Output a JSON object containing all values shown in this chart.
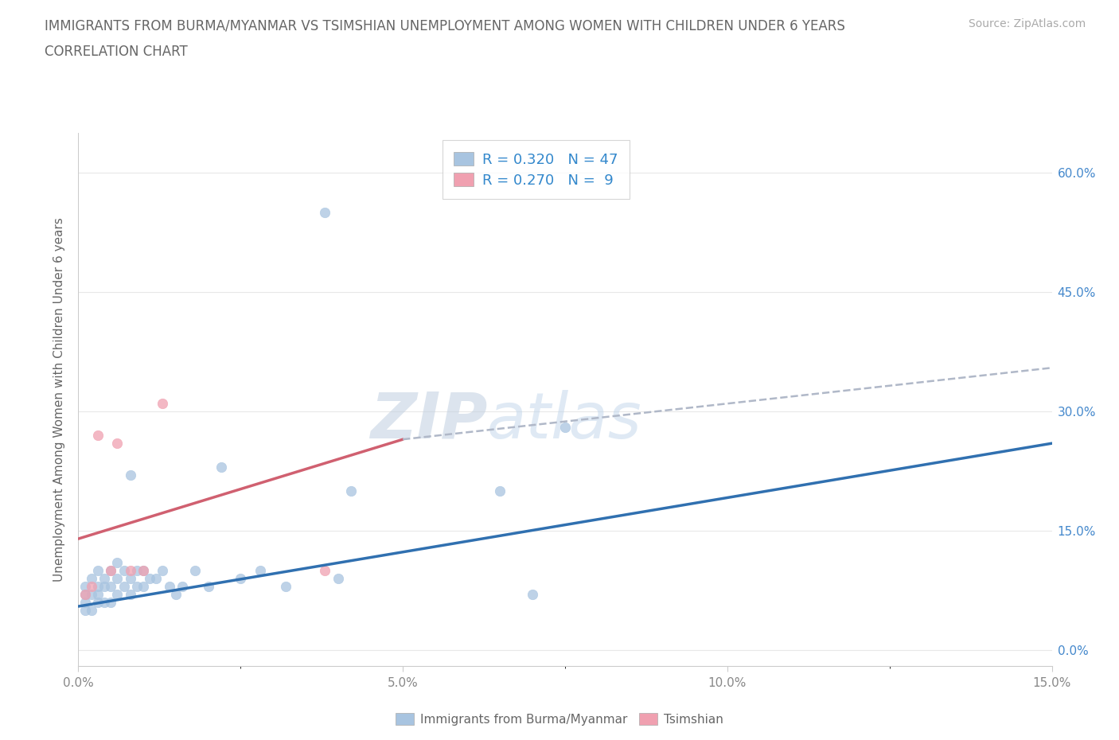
{
  "title_line1": "IMMIGRANTS FROM BURMA/MYANMAR VS TSIMSHIAN UNEMPLOYMENT AMONG WOMEN WITH CHILDREN UNDER 6 YEARS",
  "title_line2": "CORRELATION CHART",
  "source": "Source: ZipAtlas.com",
  "ylabel": "Unemployment Among Women with Children Under 6 years",
  "xlim": [
    0.0,
    0.15
  ],
  "ylim": [
    -0.02,
    0.65
  ],
  "yticks": [
    0.0,
    0.15,
    0.3,
    0.45,
    0.6
  ],
  "yticklabels": [
    "0.0%",
    "15.0%",
    "30.0%",
    "45.0%",
    "60.0%"
  ],
  "xticks": [
    0.0,
    0.05,
    0.1,
    0.15
  ],
  "xticklabels": [
    "0.0%",
    "5.0%",
    "10.0%",
    "15.0%"
  ],
  "blue_R": 0.32,
  "blue_N": 47,
  "pink_R": 0.27,
  "pink_N": 9,
  "blue_color": "#a8c4e0",
  "pink_color": "#f0a0b0",
  "blue_line_color": "#3070b0",
  "pink_line_color": "#d06070",
  "gray_dash_color": "#b0b8c8",
  "legend_label_blue": "Immigrants from Burma/Myanmar",
  "legend_label_pink": "Tsimshian",
  "blue_scatter_x": [
    0.001,
    0.001,
    0.001,
    0.001,
    0.002,
    0.002,
    0.002,
    0.003,
    0.003,
    0.003,
    0.003,
    0.004,
    0.004,
    0.004,
    0.005,
    0.005,
    0.005,
    0.006,
    0.006,
    0.006,
    0.007,
    0.007,
    0.008,
    0.008,
    0.008,
    0.009,
    0.009,
    0.01,
    0.01,
    0.011,
    0.012,
    0.013,
    0.014,
    0.015,
    0.016,
    0.018,
    0.02,
    0.022,
    0.025,
    0.028,
    0.032,
    0.038,
    0.042,
    0.075,
    0.04,
    0.065,
    0.07
  ],
  "blue_scatter_y": [
    0.05,
    0.06,
    0.07,
    0.08,
    0.05,
    0.07,
    0.09,
    0.06,
    0.07,
    0.08,
    0.1,
    0.06,
    0.08,
    0.09,
    0.06,
    0.08,
    0.1,
    0.07,
    0.09,
    0.11,
    0.08,
    0.1,
    0.07,
    0.09,
    0.22,
    0.08,
    0.1,
    0.08,
    0.1,
    0.09,
    0.09,
    0.1,
    0.08,
    0.07,
    0.08,
    0.1,
    0.08,
    0.23,
    0.09,
    0.1,
    0.08,
    0.55,
    0.2,
    0.28,
    0.09,
    0.2,
    0.07
  ],
  "pink_scatter_x": [
    0.001,
    0.002,
    0.003,
    0.005,
    0.006,
    0.008,
    0.01,
    0.013,
    0.038
  ],
  "pink_scatter_y": [
    0.07,
    0.08,
    0.27,
    0.1,
    0.26,
    0.1,
    0.1,
    0.31,
    0.1
  ],
  "blue_trend_x": [
    0.0,
    0.15
  ],
  "blue_trend_y": [
    0.055,
    0.26
  ],
  "pink_trend_x": [
    0.0,
    0.05
  ],
  "pink_trend_y": [
    0.14,
    0.265
  ],
  "gray_trend_x": [
    0.05,
    0.15
  ],
  "gray_trend_y": [
    0.265,
    0.355
  ],
  "watermark_zip": "ZIP",
  "watermark_atlas": "atlas",
  "background_color": "#ffffff",
  "grid_color": "#e8e8e8",
  "tick_color": "#888888",
  "label_color": "#666666",
  "right_tick_color": "#4488cc",
  "legend_text_color": "#3388cc"
}
